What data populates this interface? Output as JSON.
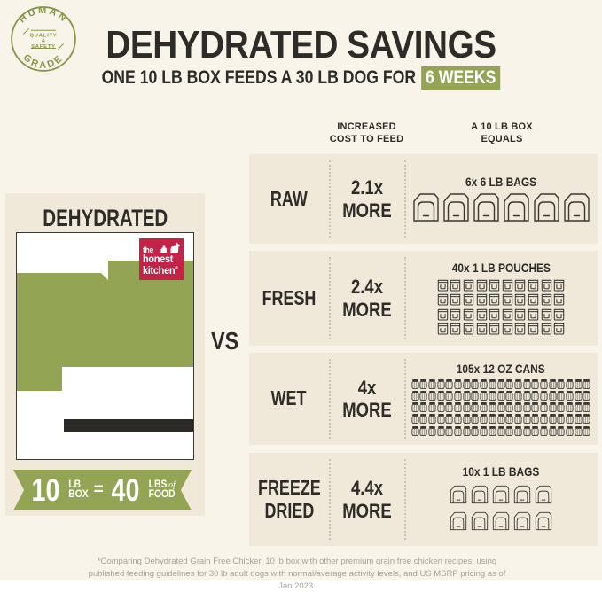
{
  "colors": {
    "page_bg": "#f9f4ea",
    "panel_bg": "#f0e9da",
    "green": "#93a455",
    "badge_olive": "#879649",
    "logo_red": "#c32349",
    "dark_text": "#2e2c28",
    "footnote_gray": "#a7a29a"
  },
  "badge": {
    "arc_top": "HUMAN",
    "arc_bottom": "GRADE",
    "center_line1": "QUALITY",
    "center_line2": "&",
    "center_line3": "SAFETY"
  },
  "header": {
    "title": "DEHYDRATED SAVINGS",
    "subtitle": "ONE 10 LB BOX FEEDS A 30 LB DOG FOR",
    "subtitle_highlight": "6 WEEKS"
  },
  "dehydrated_panel": {
    "title": "DEHYDRATED",
    "logo_line1": "the",
    "logo_line2": "honest",
    "logo_line3": "kitchen",
    "logo_reg": "®",
    "ribbon": {
      "qty1": "10",
      "unit1_line1": "LB",
      "unit1_line2": "BOX",
      "equals": "=",
      "qty2": "40",
      "unit2_line1": "LBS",
      "unit2_of": "of",
      "unit2_line2": "FOOD"
    }
  },
  "vs_label": "VS",
  "table": {
    "col_header_cost": "INCREASED\nCOST TO FEED",
    "col_header_equals": "A 10 LB BOX\nEQUALS",
    "rows": [
      {
        "id": "raw",
        "label": "RAW",
        "cost": "2.1x\nMORE",
        "items_label": "6x 6 LB BAGS",
        "icon": "bag",
        "count": 6,
        "per_row": 6
      },
      {
        "id": "fresh",
        "label": "FRESH",
        "cost": "2.4x\nMORE",
        "items_label": "40x 1 LB POUCHES",
        "icon": "pouch",
        "count": 40,
        "per_row": 10
      },
      {
        "id": "wet",
        "label": "WET",
        "cost": "4x\nMORE",
        "items_label": "105x 12 OZ CANS",
        "icon": "can",
        "count": 105,
        "per_row": 21
      },
      {
        "id": "freeze-dried",
        "label": "FREEZE\nDRIED",
        "cost": "4.4x\nMORE",
        "items_label": "10x 1 LB BAGS",
        "icon": "bag-small",
        "count": 10,
        "per_row": 5
      }
    ]
  },
  "footnote": "*Comparing Dehydrated Grain Free Chicken 10 lb box with other premium grain free chicken recipes, using published feeding guidelines for 30 lb adult dogs with normal/average activity levels, and US MSRP pricing as of Jan 2023.",
  "chart_data": {
    "type": "table",
    "title": "DEHYDRATED SAVINGS",
    "subtitle": "ONE 10 LB BOX FEEDS A 30 LB DOG FOR 6 WEEKS",
    "categories": [
      "RAW",
      "FRESH",
      "WET",
      "FREEZE DRIED"
    ],
    "series": [
      {
        "name": "INCREASED COST TO FEED",
        "values": [
          "2.1x MORE",
          "2.4x MORE",
          "4x MORE",
          "4.4x MORE"
        ]
      },
      {
        "name": "A 10 LB BOX EQUALS",
        "values": [
          "6x 6 LB BAGS",
          "40x 1 LB POUCHES",
          "105x 12 OZ CANS",
          "10x 1 LB BAGS"
        ]
      }
    ],
    "cost_multipliers": [
      2.1,
      2.4,
      4,
      4.4
    ],
    "equivalent_counts": [
      6,
      40,
      105,
      10
    ],
    "dehydrated_equivalence": "10 LB BOX = 40 LBS of FOOD",
    "legend_position": "none",
    "grid": false
  }
}
